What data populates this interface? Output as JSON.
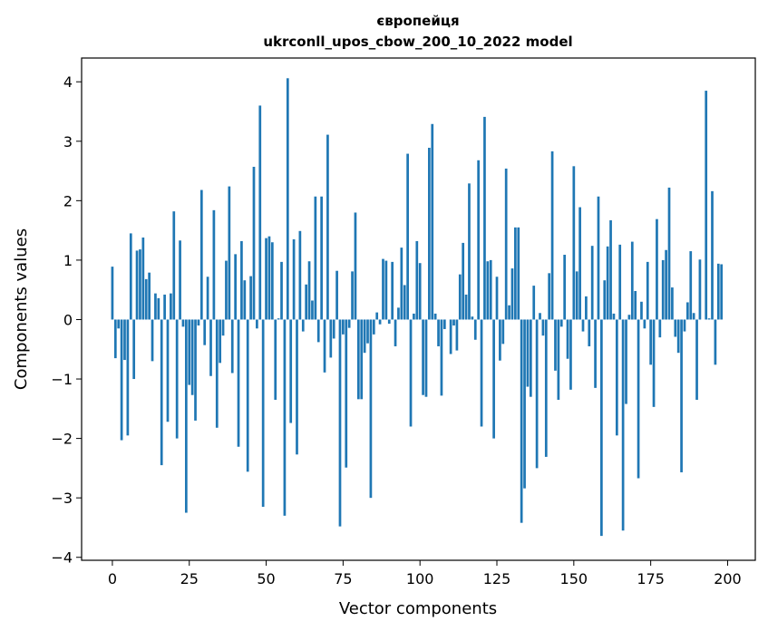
{
  "chart_data": {
    "type": "bar",
    "title": "європейця",
    "subtitle": "ukrconll_upos_cbow_200_10_2022 model",
    "xlabel": "Vector components",
    "ylabel": "Components values",
    "xlim": [
      -10,
      209
    ],
    "ylim": [
      -4.05,
      4.4
    ],
    "xticks": [
      0,
      25,
      50,
      75,
      100,
      125,
      150,
      175,
      200
    ],
    "yticks": [
      -4,
      -3,
      -2,
      -1,
      0,
      1,
      2,
      3,
      4
    ],
    "xtick_labels": [
      "0",
      "25",
      "50",
      "75",
      "100",
      "125",
      "150",
      "175",
      "200"
    ],
    "ytick_labels": [
      "−4",
      "−3",
      "−2",
      "−1",
      "0",
      "1",
      "2",
      "3",
      "4"
    ],
    "bar_color": "#1f77b4",
    "grid": false,
    "legend": "none",
    "values": [
      0.89,
      -0.65,
      -0.15,
      -2.03,
      -0.68,
      -1.95,
      1.45,
      -1.0,
      1.16,
      1.18,
      1.38,
      0.68,
      0.79,
      -0.7,
      0.44,
      0.36,
      -2.45,
      0.42,
      -1.72,
      0.44,
      1.82,
      -2.0,
      1.33,
      -0.12,
      -3.25,
      -1.1,
      -1.27,
      -1.7,
      -0.1,
      2.18,
      -0.43,
      0.72,
      -0.95,
      1.84,
      -1.82,
      -0.73,
      -0.27,
      0.99,
      2.24,
      -0.9,
      1.1,
      -2.14,
      1.32,
      0.66,
      -2.56,
      0.73,
      2.57,
      -0.15,
      3.6,
      -3.15,
      1.37,
      1.4,
      1.3,
      -1.35,
      0.02,
      0.97,
      -3.3,
      4.06,
      -1.74,
      1.35,
      -2.27,
      1.49,
      -0.2,
      0.59,
      0.98,
      0.32,
      2.07,
      -0.38,
      2.07,
      -0.89,
      3.11,
      -0.64,
      -0.32,
      0.82,
      -3.48,
      -0.25,
      -2.49,
      -0.14,
      0.81,
      1.8,
      -1.34,
      -1.34,
      -0.56,
      -0.4,
      -3.0,
      -0.25,
      0.12,
      -0.08,
      1.02,
      0.99,
      -0.07,
      0.97,
      -0.45,
      0.2,
      1.21,
      0.58,
      2.79,
      -1.8,
      0.1,
      1.32,
      0.95,
      -1.27,
      -1.3,
      2.89,
      3.29,
      0.1,
      -0.45,
      -1.28,
      -0.16,
      0.0,
      -0.58,
      -0.1,
      -0.52,
      0.76,
      1.29,
      0.42,
      2.29,
      0.05,
      -0.34,
      2.68,
      -1.8,
      3.41,
      0.98,
      1.0,
      -2.0,
      0.72,
      -0.69,
      -0.41,
      2.54,
      0.24,
      0.86,
      1.55,
      1.55,
      -3.42,
      -2.84,
      -1.13,
      -1.3,
      0.57,
      -2.5,
      0.11,
      -0.27,
      -2.31,
      0.78,
      2.83,
      -0.86,
      -1.35,
      -0.12,
      1.09,
      -0.66,
      -1.18,
      2.58,
      0.81,
      1.89,
      -0.2,
      0.39,
      -0.45,
      1.24,
      -1.15,
      2.07,
      -3.64,
      0.66,
      1.23,
      1.67,
      0.1,
      -1.95,
      1.26,
      -3.55,
      -1.42,
      0.08,
      1.31,
      0.48,
      -2.67,
      0.3,
      -0.15,
      0.97,
      -0.76,
      -1.47,
      1.69,
      -0.3,
      1.0,
      1.17,
      2.22,
      0.54,
      -0.29,
      -0.56,
      -2.57,
      -0.2,
      0.29,
      1.15,
      0.11,
      -1.35,
      1.01,
      0.0,
      3.85,
      0.02,
      2.16,
      -0.76,
      0.94,
      0.93
    ]
  }
}
